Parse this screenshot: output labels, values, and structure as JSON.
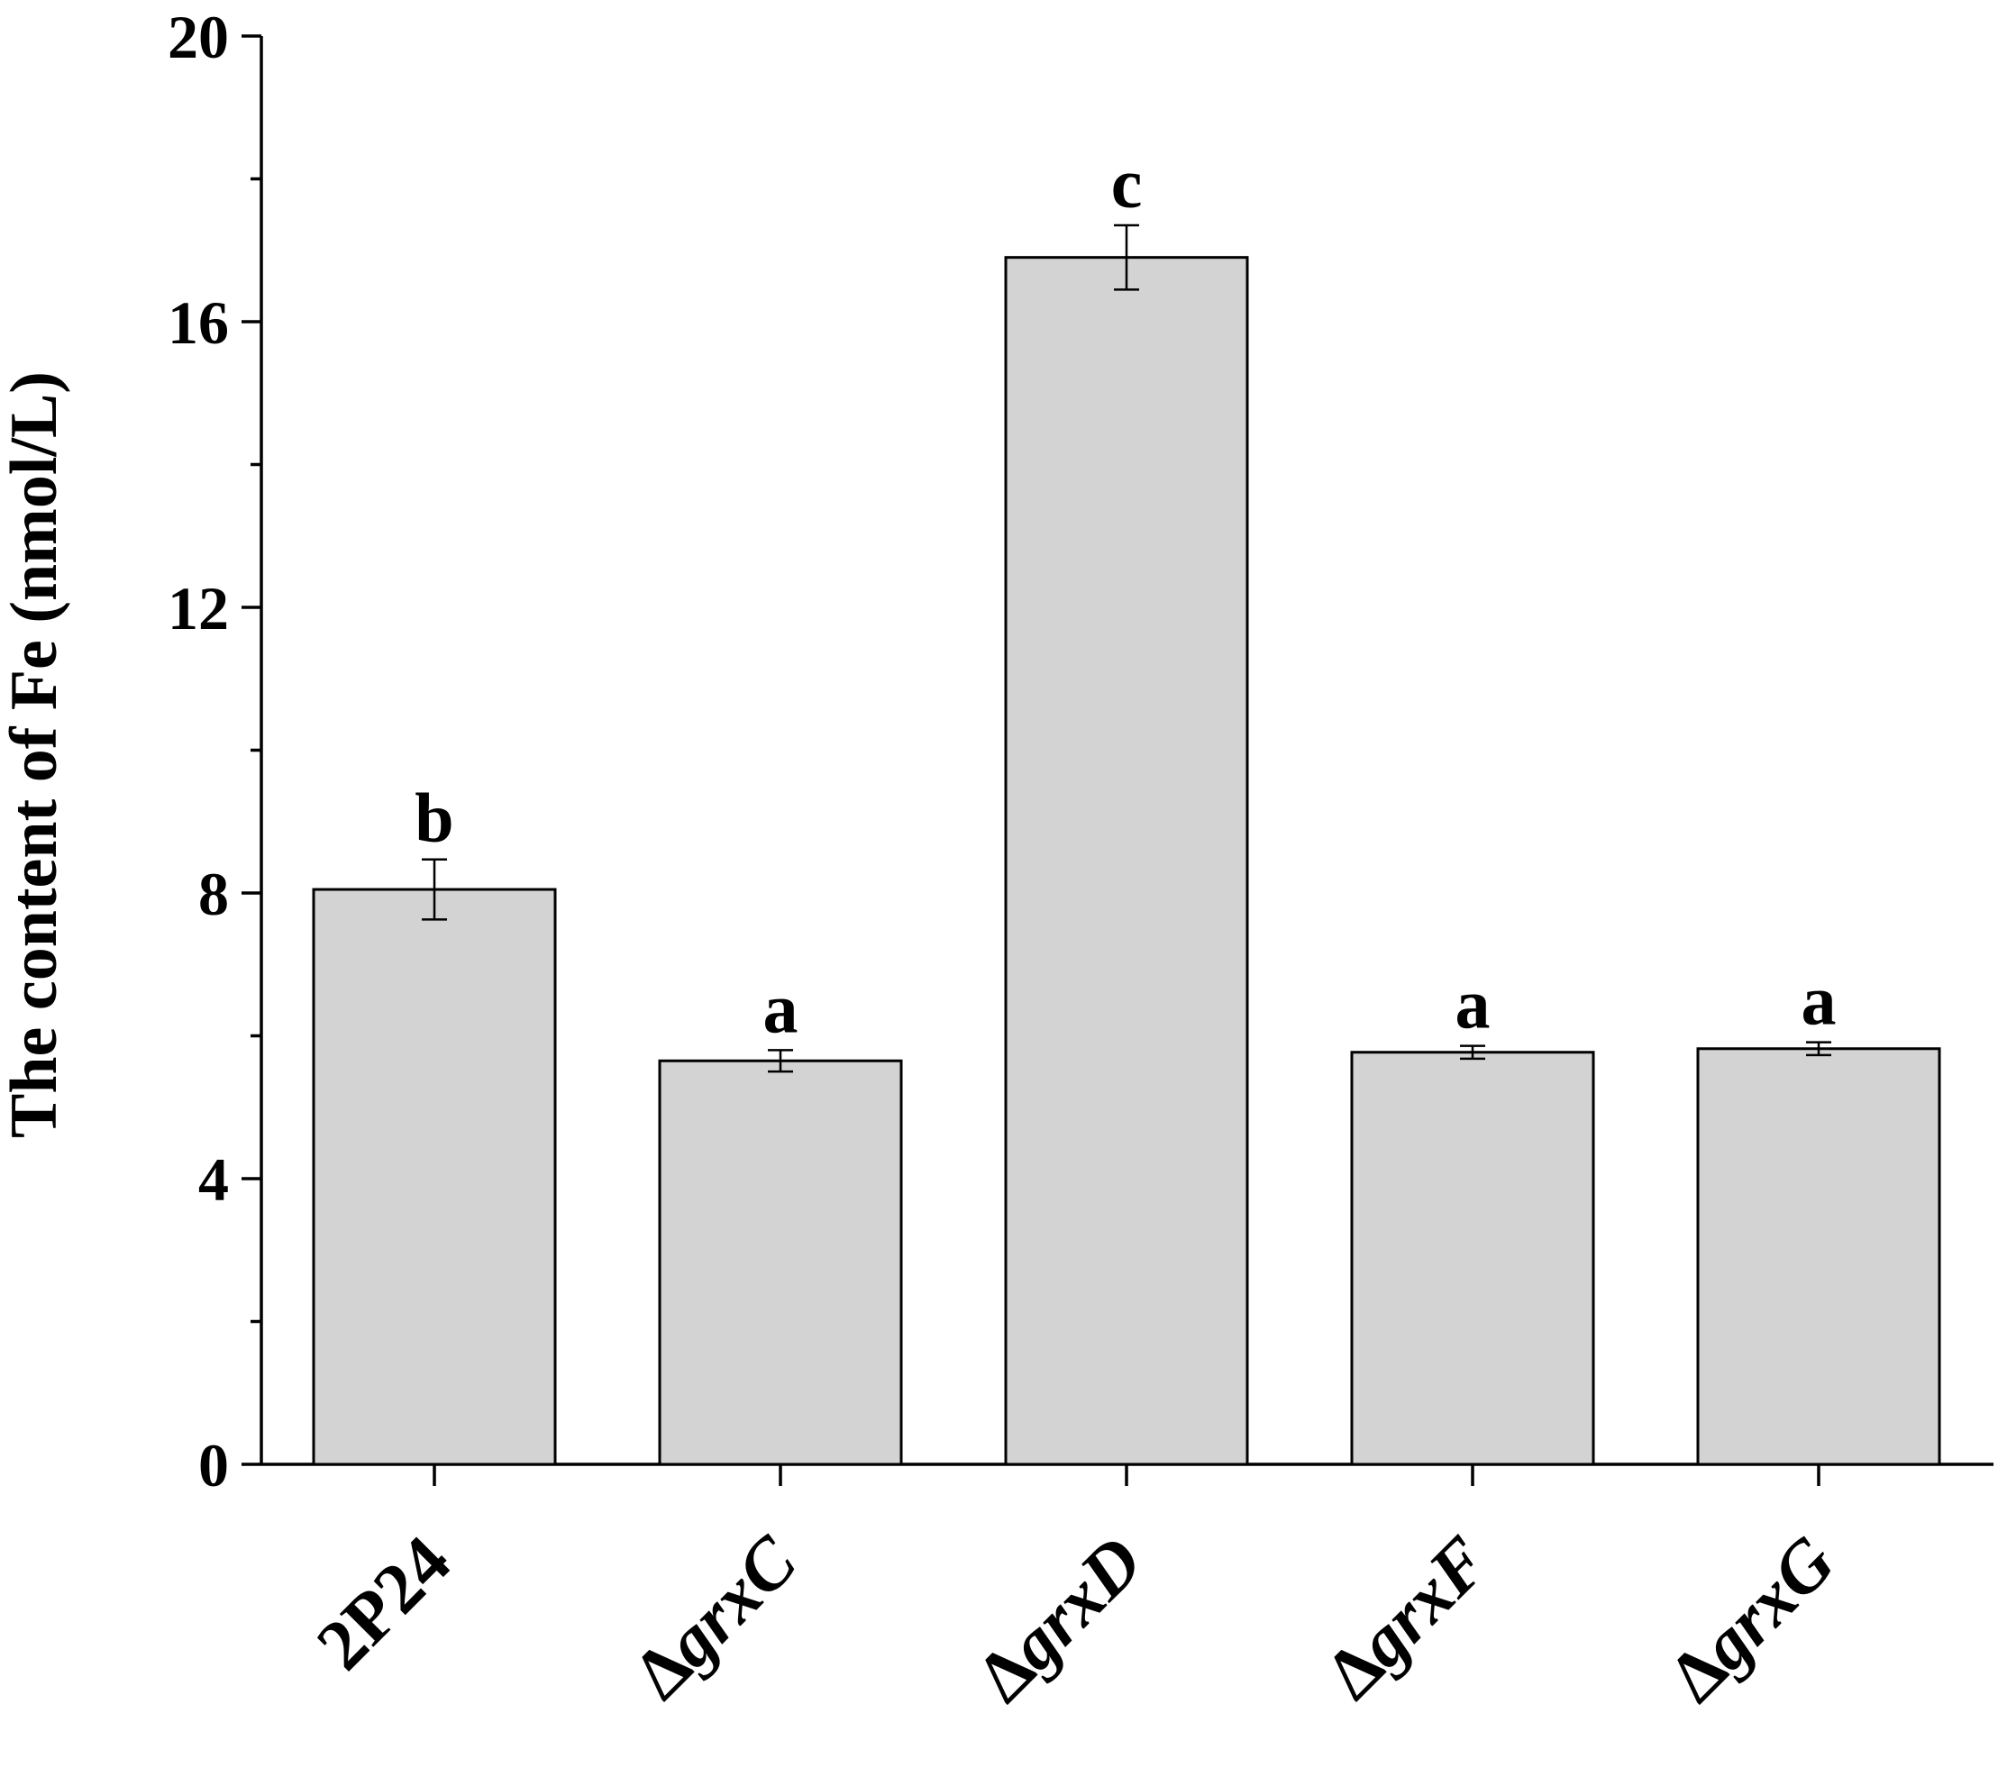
{
  "chart_data": {
    "type": "bar",
    "title": "",
    "xlabel": "",
    "ylabel": "The content of Fe (nmol/L)",
    "ylim": [
      0,
      20
    ],
    "yticks": [
      "0",
      "4",
      "8",
      "12",
      "16",
      "20"
    ],
    "grid": false,
    "categories": [
      {
        "delta": "",
        "text": "2P24",
        "italic": false
      },
      {
        "delta": "Δ",
        "text": "grxC",
        "italic": true
      },
      {
        "delta": "Δ",
        "text": "grxD",
        "italic": true
      },
      {
        "delta": "Δ",
        "text": "grxF",
        "italic": true
      },
      {
        "delta": "Δ",
        "text": "grxG",
        "italic": true
      }
    ],
    "values": [
      8.05,
      5.65,
      16.9,
      5.77,
      5.82
    ],
    "errors": [
      0.42,
      0.15,
      0.45,
      0.09,
      0.09
    ],
    "significance": [
      "b",
      "a",
      "c",
      "a",
      "a"
    ],
    "colors": {
      "bar_fill": "#d3d3d3",
      "bar_stroke": "#000000"
    }
  }
}
